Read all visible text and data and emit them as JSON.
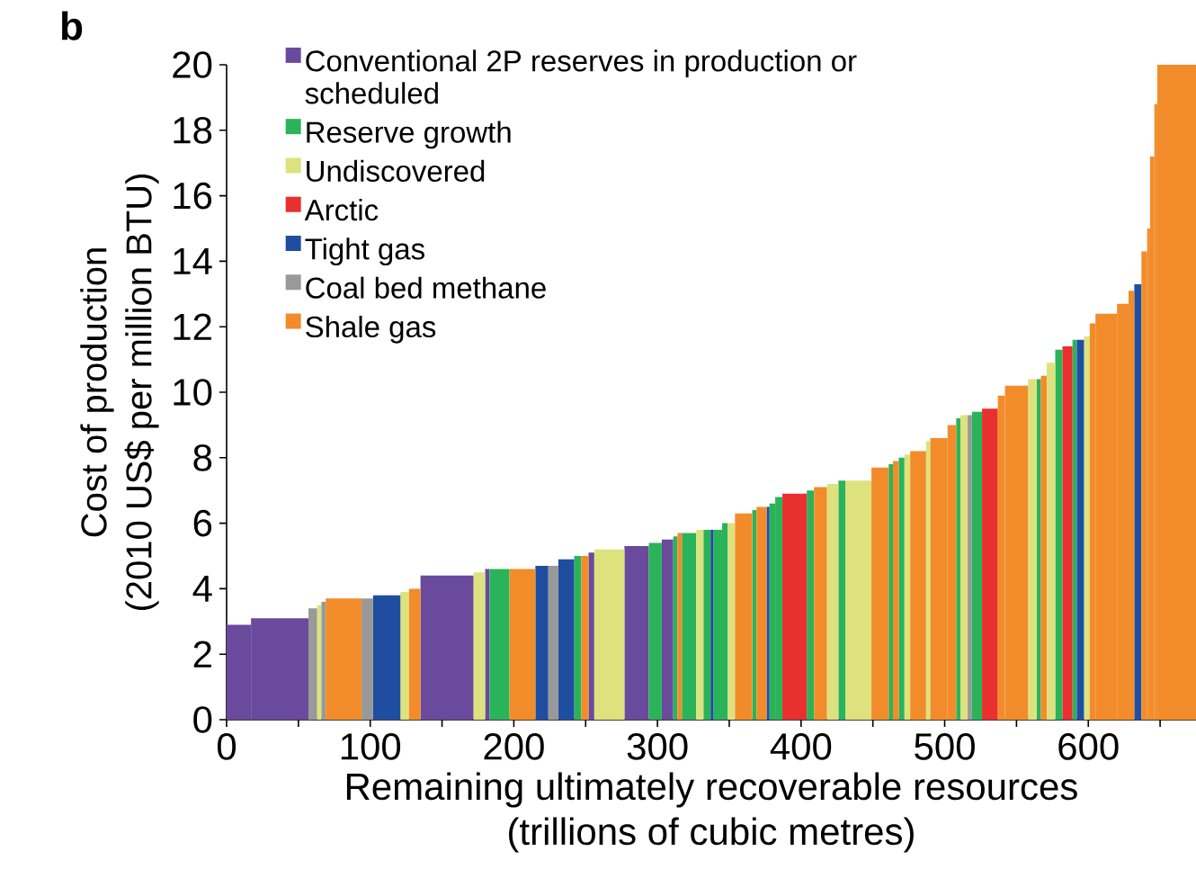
{
  "chart_data": {
    "type": "histogram",
    "title": "b",
    "xlabel": "Remaining ultimately recoverable resources\n(trillions of cubic metres)",
    "ylabel": "Cost of production\n(2010 US$ per million BTU)",
    "bins": [
      0,
      17,
      57,
      63,
      66,
      69,
      94,
      102,
      121,
      127,
      135,
      172,
      180,
      183,
      197,
      215,
      224,
      231,
      242,
      247,
      252,
      256,
      277,
      294,
      303,
      311,
      314,
      317,
      327,
      332,
      337,
      339,
      345,
      349,
      354,
      366,
      369,
      376,
      378,
      382,
      387,
      404,
      409,
      418,
      426,
      431,
      449,
      461,
      464,
      468,
      472,
      476,
      487,
      490,
      502,
      508,
      511,
      516,
      519,
      526,
      537,
      542,
      558,
      564,
      567,
      571,
      577,
      582,
      589,
      592,
      597,
      601,
      605,
      620,
      628,
      632,
      637,
      641,
      643,
      646,
      648,
      675
    ],
    "series": [
      {
        "name": "Conventional 2P reserves in production or scheduled",
        "color": "#6a4a9c",
        "values": [
          2.9,
          3.1,
          null,
          null,
          null,
          null,
          null,
          null,
          null,
          null,
          4.4,
          null,
          4.6,
          null,
          null,
          null,
          null,
          null,
          null,
          null,
          5.1,
          null,
          5.3,
          null,
          5.5,
          null,
          null,
          null,
          null,
          null,
          null,
          null,
          null,
          null,
          null,
          null,
          null,
          null,
          null,
          null,
          null,
          null,
          null,
          null,
          null,
          null,
          null,
          null,
          null,
          null,
          null,
          null,
          null,
          null,
          null,
          null,
          null,
          null,
          null,
          null,
          null,
          null,
          null,
          null,
          null,
          null,
          null,
          null,
          null,
          null,
          null,
          null,
          null,
          null,
          null,
          null,
          null,
          null,
          null,
          null,
          null
        ]
      },
      {
        "name": "Reserve growth",
        "color": "#2bb35a",
        "values": [
          null,
          null,
          null,
          null,
          null,
          null,
          null,
          null,
          null,
          null,
          null,
          null,
          null,
          4.6,
          null,
          null,
          null,
          null,
          5.0,
          null,
          null,
          null,
          null,
          5.4,
          null,
          5.6,
          null,
          5.7,
          null,
          5.8,
          null,
          5.8,
          6.0,
          null,
          null,
          6.4,
          null,
          null,
          6.6,
          6.8,
          null,
          7.0,
          null,
          null,
          7.3,
          null,
          null,
          7.8,
          null,
          8.0,
          null,
          null,
          null,
          null,
          null,
          9.2,
          null,
          null,
          9.4,
          null,
          null,
          null,
          null,
          10.4,
          null,
          null,
          11.3,
          null,
          11.6,
          null,
          null,
          null,
          null,
          null,
          null,
          null,
          null,
          null,
          null,
          null,
          null
        ]
      },
      {
        "name": "Undiscovered",
        "color": "#dde27e",
        "values": [
          null,
          null,
          null,
          3.5,
          null,
          null,
          null,
          null,
          3.9,
          null,
          null,
          4.5,
          null,
          null,
          null,
          null,
          null,
          null,
          null,
          null,
          null,
          5.2,
          null,
          null,
          null,
          null,
          null,
          null,
          5.8,
          null,
          null,
          null,
          null,
          6.0,
          null,
          null,
          null,
          null,
          null,
          null,
          null,
          null,
          null,
          7.2,
          null,
          7.3,
          null,
          null,
          null,
          null,
          8.1,
          null,
          8.5,
          null,
          null,
          null,
          9.3,
          null,
          null,
          null,
          null,
          null,
          10.4,
          null,
          null,
          10.9,
          null,
          null,
          null,
          null,
          11.7,
          null,
          null,
          null,
          null,
          null,
          null,
          null,
          null,
          null,
          null
        ]
      },
      {
        "name": "Arctic",
        "color": "#e8302f",
        "values": [
          null,
          null,
          null,
          null,
          null,
          null,
          null,
          null,
          null,
          null,
          null,
          null,
          null,
          null,
          null,
          null,
          null,
          null,
          null,
          null,
          null,
          null,
          null,
          null,
          null,
          null,
          null,
          null,
          null,
          null,
          null,
          null,
          null,
          null,
          null,
          null,
          null,
          null,
          null,
          null,
          6.9,
          null,
          null,
          null,
          null,
          null,
          null,
          null,
          null,
          null,
          null,
          null,
          null,
          null,
          null,
          null,
          null,
          null,
          null,
          9.5,
          null,
          null,
          null,
          null,
          null,
          null,
          null,
          11.4,
          null,
          null,
          null,
          null,
          null,
          null,
          null,
          null,
          null,
          null,
          null,
          null,
          null
        ]
      },
      {
        "name": "Tight gas",
        "color": "#1f4ea1",
        "values": [
          null,
          null,
          null,
          null,
          null,
          null,
          null,
          3.8,
          null,
          null,
          null,
          null,
          null,
          null,
          null,
          4.7,
          null,
          4.9,
          null,
          null,
          null,
          null,
          null,
          null,
          null,
          null,
          null,
          null,
          null,
          null,
          5.8,
          null,
          null,
          null,
          null,
          null,
          null,
          6.5,
          null,
          null,
          null,
          null,
          null,
          null,
          null,
          null,
          null,
          null,
          null,
          null,
          null,
          null,
          null,
          null,
          null,
          null,
          null,
          null,
          null,
          null,
          null,
          null,
          null,
          null,
          null,
          null,
          null,
          null,
          null,
          11.6,
          null,
          null,
          null,
          null,
          null,
          13.3,
          null,
          null,
          null,
          null,
          null
        ]
      },
      {
        "name": "Coal bed methane",
        "color": "#999999",
        "values": [
          null,
          null,
          3.4,
          null,
          3.6,
          null,
          3.7,
          null,
          null,
          null,
          null,
          null,
          null,
          null,
          null,
          null,
          4.7,
          null,
          null,
          null,
          null,
          null,
          null,
          null,
          null,
          null,
          null,
          null,
          null,
          null,
          null,
          null,
          null,
          null,
          null,
          null,
          null,
          null,
          null,
          null,
          null,
          null,
          null,
          null,
          null,
          null,
          null,
          null,
          null,
          null,
          null,
          null,
          null,
          null,
          null,
          null,
          null,
          9.3,
          null,
          null,
          null,
          null,
          null,
          null,
          null,
          null,
          null,
          null,
          null,
          null,
          null,
          null,
          null,
          null,
          null,
          null,
          null,
          null,
          null,
          null,
          null
        ]
      },
      {
        "name": "Shale gas",
        "color": "#f28c2b",
        "values": [
          null,
          null,
          null,
          null,
          null,
          3.7,
          null,
          null,
          null,
          4.0,
          null,
          null,
          null,
          null,
          4.6,
          null,
          null,
          null,
          null,
          5.0,
          null,
          null,
          null,
          null,
          null,
          null,
          5.7,
          null,
          null,
          null,
          null,
          null,
          null,
          null,
          6.3,
          null,
          6.5,
          null,
          null,
          null,
          null,
          null,
          7.1,
          null,
          null,
          null,
          7.7,
          null,
          7.9,
          null,
          null,
          8.2,
          null,
          8.6,
          9.0,
          null,
          null,
          null,
          null,
          null,
          9.9,
          10.2,
          null,
          null,
          10.5,
          null,
          null,
          null,
          null,
          null,
          null,
          12.1,
          12.4,
          12.7,
          13.1,
          null,
          14.3,
          15.0,
          17.2,
          18.8,
          20.0
        ]
      }
    ],
    "xlim": [
      0,
      675
    ],
    "ylim": [
      0,
      20
    ],
    "xticks": [
      0,
      {
        "value": 50,
        "label": null
      },
      100,
      {
        "value": 150,
        "label": null
      },
      200,
      {
        "value": 250,
        "label": null
      },
      300,
      {
        "value": 350,
        "label": null
      },
      400,
      {
        "value": 450,
        "label": null
      },
      500,
      {
        "value": 550,
        "label": null
      },
      600,
      {
        "value": 650,
        "label": null
      }
    ],
    "yticks": [
      0,
      2,
      4,
      6,
      8,
      10,
      12,
      14,
      16,
      18,
      20
    ],
    "legend": "top left"
  }
}
